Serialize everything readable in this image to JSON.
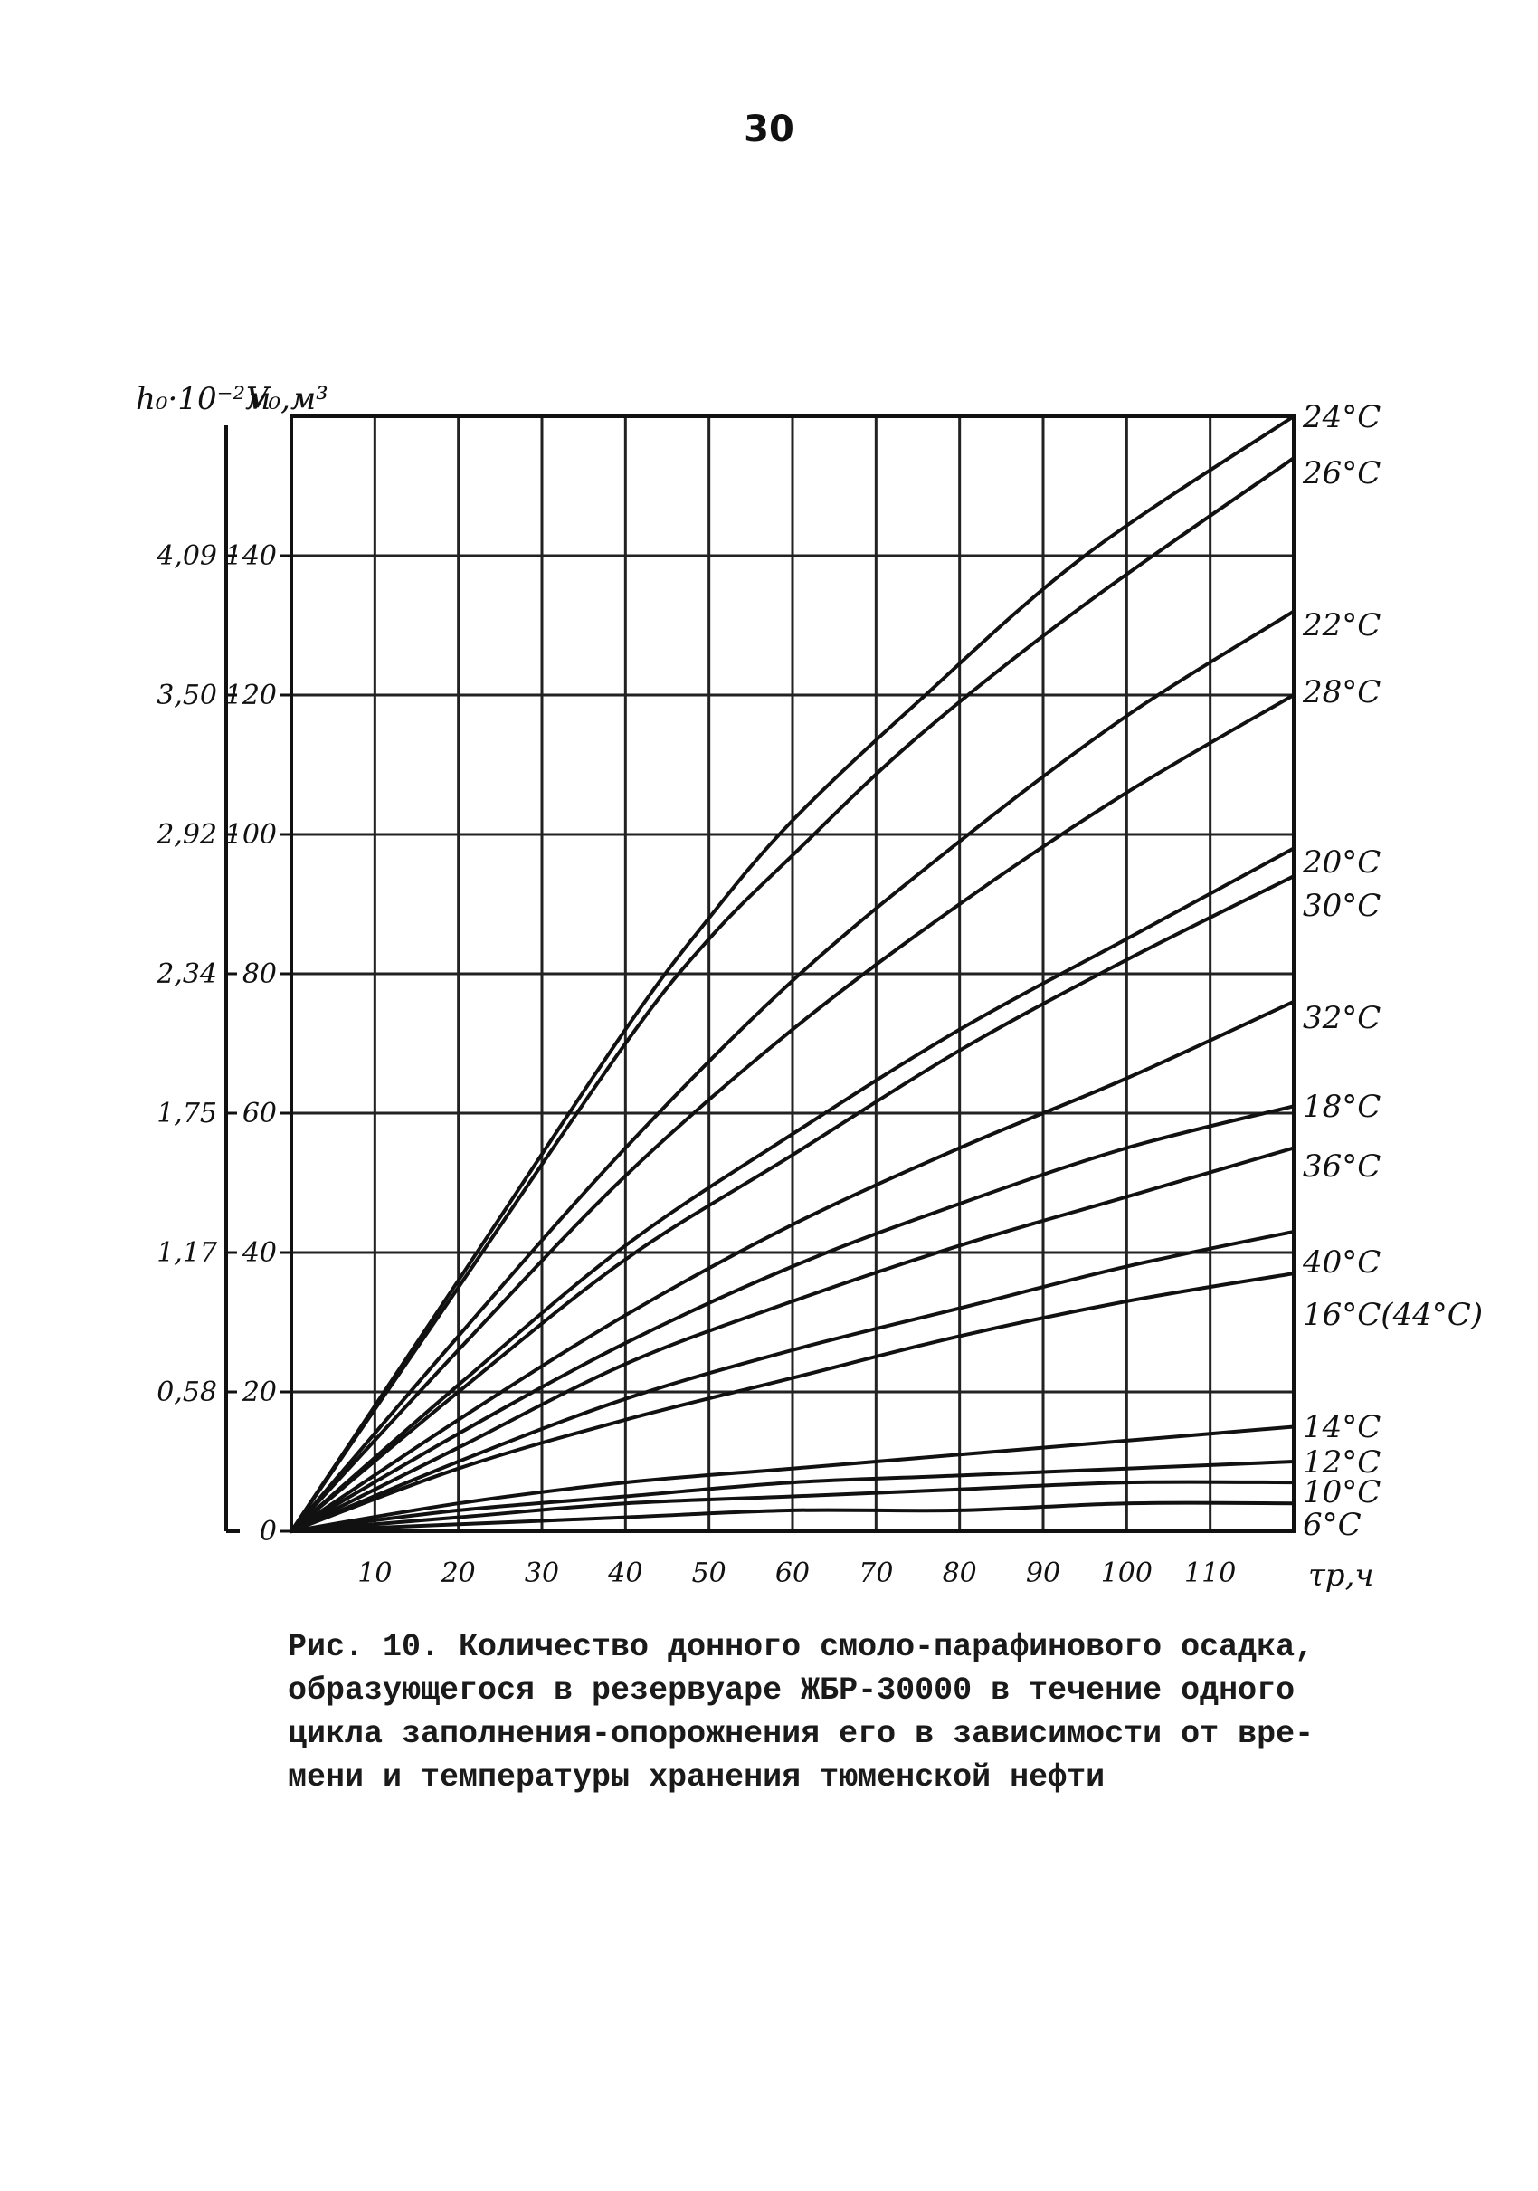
{
  "page": {
    "number": "30"
  },
  "caption": {
    "lines": [
      "Рис. 10. Количество донного смоло-парафинового осадка,",
      "образующегося в резервуаре ЖБР-30000 в течение одного",
      "цикла заполнения-опорожнения его в зависимости от вре-",
      "мени и температуры хранения тюменской нефти"
    ]
  },
  "chart_data": {
    "type": "line",
    "title": "",
    "xlabel": "τр,ч",
    "ylabel": "V₀,м³",
    "ylabel2": "h₀·10⁻²м",
    "xlim": [
      0,
      120
    ],
    "ylim": [
      0,
      160
    ],
    "grid": true,
    "x_ticks": [
      "10",
      "20",
      "30",
      "40",
      "50",
      "60",
      "70",
      "80",
      "90",
      "100",
      "110"
    ],
    "y_ticks": [
      {
        "value": 0,
        "label": "0",
        "h": ""
      },
      {
        "value": 20,
        "label": "20",
        "h": "0,58"
      },
      {
        "value": 40,
        "label": "40",
        "h": "1,17"
      },
      {
        "value": 60,
        "label": "60",
        "h": "1,75"
      },
      {
        "value": 80,
        "label": "80",
        "h": "2,34"
      },
      {
        "value": 100,
        "label": "100",
        "h": "2,92"
      },
      {
        "value": 120,
        "label": "120",
        "h": "3,50"
      },
      {
        "value": 140,
        "label": "140",
        "h": "4,09"
      }
    ],
    "series": [
      {
        "name": "24°C",
        "x": [
          0,
          20,
          40,
          50,
          60,
          75,
          95,
          120
        ],
        "y": [
          0,
          36,
          72,
          88,
          102,
          119,
          140,
          160
        ]
      },
      {
        "name": "26°C",
        "x": [
          0,
          20,
          40,
          50,
          60,
          75,
          95,
          120
        ],
        "y": [
          0,
          35,
          70,
          85,
          97,
          114,
          133,
          154
        ]
      },
      {
        "name": "22°C",
        "x": [
          0,
          20,
          40,
          60,
          80,
          100,
          120
        ],
        "y": [
          0,
          28,
          55,
          79,
          99,
          117,
          132
        ]
      },
      {
        "name": "28°C",
        "x": [
          0,
          20,
          40,
          60,
          80,
          100,
          120
        ],
        "y": [
          0,
          26,
          51,
          72,
          90,
          106,
          120
        ]
      },
      {
        "name": "20°C",
        "x": [
          0,
          20,
          40,
          60,
          80,
          100,
          120
        ],
        "y": [
          0,
          21,
          41,
          57,
          72,
          85,
          98
        ]
      },
      {
        "name": "30°C",
        "x": [
          0,
          20,
          40,
          60,
          80,
          100,
          120
        ],
        "y": [
          0,
          20,
          39,
          54,
          69,
          82,
          94
        ]
      },
      {
        "name": "32°C",
        "x": [
          0,
          20,
          40,
          60,
          80,
          100,
          120
        ],
        "y": [
          0,
          16,
          31,
          44,
          55,
          65,
          76
        ]
      },
      {
        "name": "18°C",
        "x": [
          0,
          20,
          40,
          60,
          80,
          100,
          120
        ],
        "y": [
          0,
          14,
          27,
          38,
          47,
          55,
          61
        ]
      },
      {
        "name": "36°C",
        "x": [
          0,
          20,
          40,
          60,
          80,
          100,
          120
        ],
        "y": [
          0,
          12,
          24,
          33,
          41,
          48,
          55
        ]
      },
      {
        "name": "40°C",
        "x": [
          0,
          20,
          40,
          60,
          80,
          100,
          120
        ],
        "y": [
          0,
          10,
          19,
          26,
          32,
          38,
          43
        ]
      },
      {
        "name": "16°C(44°C)",
        "x": [
          0,
          20,
          40,
          60,
          80,
          100,
          120
        ],
        "y": [
          0,
          9,
          16,
          22,
          28,
          33,
          37
        ]
      },
      {
        "name": "14°C",
        "x": [
          0,
          20,
          40,
          60,
          80,
          100,
          120
        ],
        "y": [
          0,
          4,
          7,
          9,
          11,
          13,
          15
        ]
      },
      {
        "name": "12°C",
        "x": [
          0,
          20,
          40,
          60,
          80,
          100,
          120
        ],
        "y": [
          0,
          3,
          5,
          7,
          8,
          9,
          10
        ]
      },
      {
        "name": "10°C",
        "x": [
          0,
          20,
          40,
          60,
          80,
          100,
          120
        ],
        "y": [
          0,
          2,
          4,
          5,
          6,
          7,
          7
        ]
      },
      {
        "name": "6°C",
        "x": [
          0,
          20,
          40,
          60,
          80,
          100,
          120
        ],
        "y": [
          0,
          1,
          2,
          3,
          3,
          4,
          4
        ]
      }
    ]
  }
}
